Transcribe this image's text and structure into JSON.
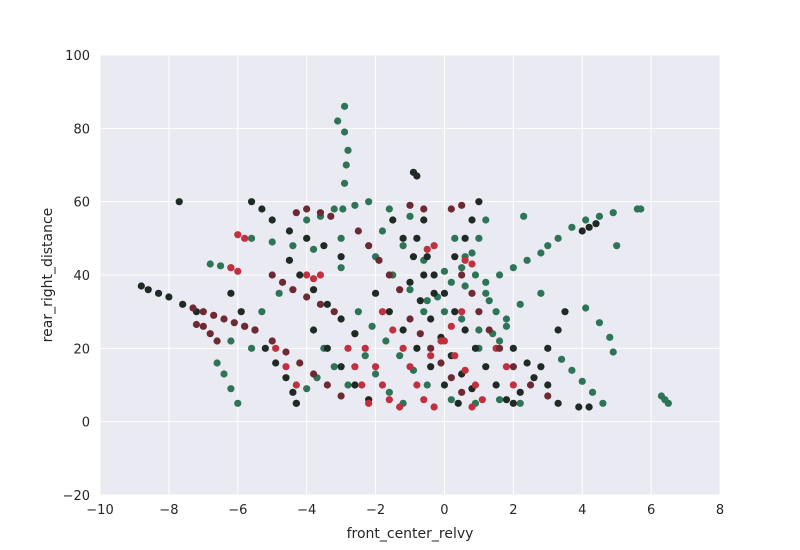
{
  "chart_data": {
    "type": "scatter",
    "title": "",
    "xlabel": "front_center_relvy",
    "ylabel": "rear_right_distance",
    "xlim": [
      -10,
      8
    ],
    "ylim": [
      -20,
      100
    ],
    "x_ticks": [
      -10,
      -8,
      -6,
      -4,
      -2,
      0,
      2,
      4,
      6,
      8
    ],
    "y_ticks": [
      -20,
      0,
      20,
      40,
      60,
      80,
      100
    ],
    "x_tick_labels": [
      "−10",
      "−8",
      "−6",
      "−4",
      "−2",
      "0",
      "2",
      "4",
      "6",
      "8"
    ],
    "y_tick_labels": [
      "−20",
      "0",
      "20",
      "40",
      "60",
      "80",
      "100"
    ],
    "grid": true,
    "background": "#eaeaf2",
    "legend": "none",
    "series": [
      {
        "color": "#2e7456",
        "points": [
          [
            -3.0,
            42
          ],
          [
            -3.0,
            50
          ],
          [
            -2.95,
            58
          ],
          [
            -2.9,
            65
          ],
          [
            -2.85,
            70
          ],
          [
            -2.8,
            74
          ],
          [
            -2.9,
            79
          ],
          [
            -3.1,
            82
          ],
          [
            -2.9,
            86
          ],
          [
            -6.8,
            43
          ],
          [
            -6.5,
            42.5
          ],
          [
            -6.2,
            42
          ],
          [
            -5.6,
            50
          ],
          [
            -5.0,
            49
          ],
          [
            -4.4,
            48
          ],
          [
            -3.8,
            47
          ],
          [
            -6.0,
            5
          ],
          [
            -6.2,
            9
          ],
          [
            -6.4,
            13
          ],
          [
            -6.6,
            16
          ],
          [
            -6.2,
            22
          ],
          [
            -5.8,
            26
          ],
          [
            -5.6,
            20
          ],
          [
            -5.3,
            30
          ],
          [
            -4.8,
            35
          ],
          [
            -4.0,
            55
          ],
          [
            -3.6,
            56
          ],
          [
            -3.2,
            58
          ],
          [
            -2.6,
            59
          ],
          [
            -2.2,
            60
          ],
          [
            -1.6,
            58
          ],
          [
            -1.0,
            56
          ],
          [
            -2.0,
            45
          ],
          [
            -1.5,
            40
          ],
          [
            -1.0,
            36
          ],
          [
            -0.5,
            33
          ],
          [
            0.0,
            30
          ],
          [
            0.5,
            28
          ],
          [
            1.0,
            25
          ],
          [
            1.6,
            22
          ],
          [
            1.2,
            55
          ],
          [
            1.0,
            50
          ],
          [
            0.8,
            46
          ],
          [
            0.5,
            42
          ],
          [
            0.2,
            38
          ],
          [
            -0.2,
            34
          ],
          [
            -0.6,
            30
          ],
          [
            1.2,
            38
          ],
          [
            1.6,
            40
          ],
          [
            2.0,
            42
          ],
          [
            2.4,
            44
          ],
          [
            2.8,
            46
          ],
          [
            3.0,
            48
          ],
          [
            3.3,
            50
          ],
          [
            3.7,
            53
          ],
          [
            4.1,
            55
          ],
          [
            4.5,
            56
          ],
          [
            4.9,
            57
          ],
          [
            5.6,
            58
          ],
          [
            5.7,
            58
          ],
          [
            5.0,
            48
          ],
          [
            4.1,
            31
          ],
          [
            4.5,
            27
          ],
          [
            4.8,
            23
          ],
          [
            4.9,
            19
          ],
          [
            3.4,
            17
          ],
          [
            3.7,
            14
          ],
          [
            4.0,
            11
          ],
          [
            4.3,
            8
          ],
          [
            4.6,
            5
          ],
          [
            6.3,
            7
          ],
          [
            6.4,
            6
          ],
          [
            6.5,
            5
          ],
          [
            2.3,
            56
          ],
          [
            2.8,
            35
          ],
          [
            2.2,
            32
          ],
          [
            1.8,
            28
          ],
          [
            1.4,
            24
          ],
          [
            1.0,
            20
          ],
          [
            -3.5,
            20
          ],
          [
            -3.2,
            15
          ],
          [
            -2.8,
            10
          ],
          [
            -4.3,
            5
          ],
          [
            -4.0,
            9
          ],
          [
            -3.7,
            12
          ],
          [
            -2.5,
            30
          ],
          [
            -2.1,
            26
          ],
          [
            -1.7,
            22
          ],
          [
            -1.3,
            18
          ],
          [
            -0.9,
            14
          ],
          [
            -0.5,
            10
          ],
          [
            0.2,
            6
          ],
          [
            0.9,
            5
          ],
          [
            1.6,
            6
          ],
          [
            2.2,
            5
          ],
          [
            -1.8,
            52
          ],
          [
            -1.2,
            48
          ],
          [
            -0.6,
            44
          ],
          [
            0.0,
            41
          ],
          [
            0.6,
            37
          ],
          [
            1.3,
            33
          ],
          [
            0.3,
            50
          ],
          [
            0.6,
            45
          ],
          [
            0.9,
            40
          ],
          [
            1.2,
            35
          ],
          [
            1.5,
            30
          ],
          [
            1.8,
            26
          ],
          [
            -2.6,
            24
          ],
          [
            -2.3,
            18
          ],
          [
            -2.0,
            13
          ],
          [
            -1.6,
            8
          ],
          [
            -1.2,
            5
          ]
        ]
      },
      {
        "color": "#1f2a24",
        "points": [
          [
            -7.7,
            60
          ],
          [
            -8.8,
            37
          ],
          [
            -8.6,
            36
          ],
          [
            -8.3,
            35
          ],
          [
            -8.0,
            34
          ],
          [
            -7.6,
            32
          ],
          [
            -7.2,
            30
          ],
          [
            -6.2,
            35
          ],
          [
            -5.9,
            30
          ],
          [
            -5.5,
            25
          ],
          [
            -5.2,
            20
          ],
          [
            -4.9,
            16
          ],
          [
            -4.6,
            12
          ],
          [
            -4.4,
            8
          ],
          [
            -4.3,
            5
          ],
          [
            -5.6,
            60
          ],
          [
            -5.3,
            58
          ],
          [
            -5.0,
            55
          ],
          [
            -4.5,
            52
          ],
          [
            -4.0,
            50
          ],
          [
            -3.5,
            48
          ],
          [
            -3.0,
            45
          ],
          [
            -0.9,
            68
          ],
          [
            -0.8,
            67
          ],
          [
            -0.6,
            55
          ],
          [
            -0.8,
            50
          ],
          [
            -0.5,
            45
          ],
          [
            -0.3,
            40
          ],
          [
            0.0,
            35
          ],
          [
            0.3,
            30
          ],
          [
            1.0,
            60
          ],
          [
            0.8,
            55
          ],
          [
            0.6,
            50
          ],
          [
            0.3,
            45
          ],
          [
            3.5,
            30
          ],
          [
            3.3,
            25
          ],
          [
            3.0,
            20
          ],
          [
            2.8,
            15
          ],
          [
            3.0,
            10
          ],
          [
            3.3,
            5
          ],
          [
            4.0,
            52
          ],
          [
            4.2,
            53
          ],
          [
            4.4,
            54
          ],
          [
            3.9,
            4
          ],
          [
            4.2,
            4
          ],
          [
            -4.5,
            44
          ],
          [
            -4.2,
            40
          ],
          [
            -3.8,
            36
          ],
          [
            -3.4,
            32
          ],
          [
            -3.0,
            28
          ],
          [
            -2.6,
            24
          ],
          [
            -1.5,
            55
          ],
          [
            -1.2,
            50
          ],
          [
            -0.9,
            45
          ],
          [
            -0.6,
            40
          ],
          [
            -0.3,
            35
          ],
          [
            0.6,
            25
          ],
          [
            0.9,
            20
          ],
          [
            1.2,
            15
          ],
          [
            1.5,
            10
          ],
          [
            1.8,
            6
          ],
          [
            -2.0,
            35
          ],
          [
            -1.6,
            30
          ],
          [
            -1.2,
            25
          ],
          [
            -0.8,
            20
          ],
          [
            -0.4,
            15
          ],
          [
            0.0,
            10
          ],
          [
            0.4,
            5
          ],
          [
            2.0,
            20
          ],
          [
            2.4,
            16
          ],
          [
            2.6,
            12
          ],
          [
            2.2,
            8
          ],
          [
            2.0,
            5
          ],
          [
            -3.8,
            25
          ],
          [
            -3.4,
            20
          ],
          [
            -3.0,
            15
          ],
          [
            -2.6,
            10
          ],
          [
            -2.2,
            6
          ],
          [
            -1.0,
            38
          ],
          [
            -0.7,
            33
          ],
          [
            -0.4,
            28
          ],
          [
            -0.1,
            23
          ],
          [
            0.2,
            18
          ],
          [
            0.5,
            13
          ],
          [
            0.8,
            9
          ]
        ]
      },
      {
        "color": "#c0303e",
        "points": [
          [
            -6.0,
            51
          ],
          [
            -5.8,
            50
          ],
          [
            -6.2,
            42
          ],
          [
            -6.0,
            41
          ],
          [
            -4.0,
            40
          ],
          [
            -3.8,
            39
          ],
          [
            -3.6,
            40
          ],
          [
            -1.8,
            30
          ],
          [
            -1.5,
            25
          ],
          [
            -1.2,
            20
          ],
          [
            -1.0,
            15
          ],
          [
            -0.8,
            10
          ],
          [
            -0.6,
            6
          ],
          [
            -0.3,
            4
          ],
          [
            -2.3,
            20
          ],
          [
            -2.0,
            15
          ],
          [
            -1.8,
            10
          ],
          [
            -1.6,
            6
          ],
          [
            -1.3,
            4
          ],
          [
            0.0,
            22
          ],
          [
            0.3,
            18
          ],
          [
            0.6,
            14
          ],
          [
            0.9,
            10
          ],
          [
            1.1,
            6
          ],
          [
            0.8,
            4
          ],
          [
            -0.3,
            48
          ],
          [
            -0.5,
            47
          ],
          [
            0.6,
            44
          ],
          [
            0.8,
            43
          ],
          [
            -4.9,
            20
          ],
          [
            -4.6,
            15
          ],
          [
            -4.3,
            10
          ],
          [
            -2.8,
            20
          ],
          [
            -2.6,
            15
          ],
          [
            -2.4,
            10
          ],
          [
            -2.2,
            5
          ],
          [
            1.5,
            20
          ],
          [
            1.8,
            15
          ],
          [
            2.0,
            10
          ],
          [
            0.5,
            30
          ],
          [
            0.2,
            26
          ],
          [
            -0.1,
            22
          ],
          [
            -0.4,
            18
          ]
        ]
      },
      {
        "color": "#6e2a32",
        "points": [
          [
            -7.3,
            31
          ],
          [
            -7.0,
            30
          ],
          [
            -6.7,
            29
          ],
          [
            -6.4,
            28
          ],
          [
            -6.1,
            27
          ],
          [
            -5.8,
            26
          ],
          [
            -5.5,
            25
          ],
          [
            -7.2,
            26.5
          ],
          [
            -7.0,
            26
          ],
          [
            -6.8,
            24
          ],
          [
            -6.6,
            22
          ],
          [
            -4.3,
            57
          ],
          [
            -4.0,
            58
          ],
          [
            -3.6,
            57
          ],
          [
            -3.3,
            56
          ],
          [
            -5.0,
            40
          ],
          [
            -4.7,
            38
          ],
          [
            -4.4,
            36
          ],
          [
            -4.0,
            34
          ],
          [
            -3.6,
            32
          ],
          [
            -3.2,
            30
          ],
          [
            -1.0,
            59
          ],
          [
            -0.6,
            58
          ],
          [
            0.2,
            58
          ],
          [
            0.5,
            59
          ],
          [
            -5.0,
            22
          ],
          [
            -4.6,
            19
          ],
          [
            -4.2,
            16
          ],
          [
            -3.8,
            13
          ],
          [
            -3.4,
            10
          ],
          [
            -3.0,
            7
          ],
          [
            0.5,
            40
          ],
          [
            0.8,
            35
          ],
          [
            1.0,
            30
          ],
          [
            1.3,
            25
          ],
          [
            1.6,
            20
          ],
          [
            2.0,
            15
          ],
          [
            2.5,
            10
          ],
          [
            3.0,
            7
          ],
          [
            -2.5,
            52
          ],
          [
            -2.2,
            48
          ],
          [
            -1.9,
            44
          ],
          [
            -1.6,
            40
          ],
          [
            -1.3,
            36
          ],
          [
            -1.0,
            28
          ],
          [
            -0.7,
            24
          ],
          [
            -0.4,
            20
          ],
          [
            -0.1,
            16
          ],
          [
            0.2,
            12
          ],
          [
            0.5,
            8
          ]
        ]
      }
    ]
  }
}
